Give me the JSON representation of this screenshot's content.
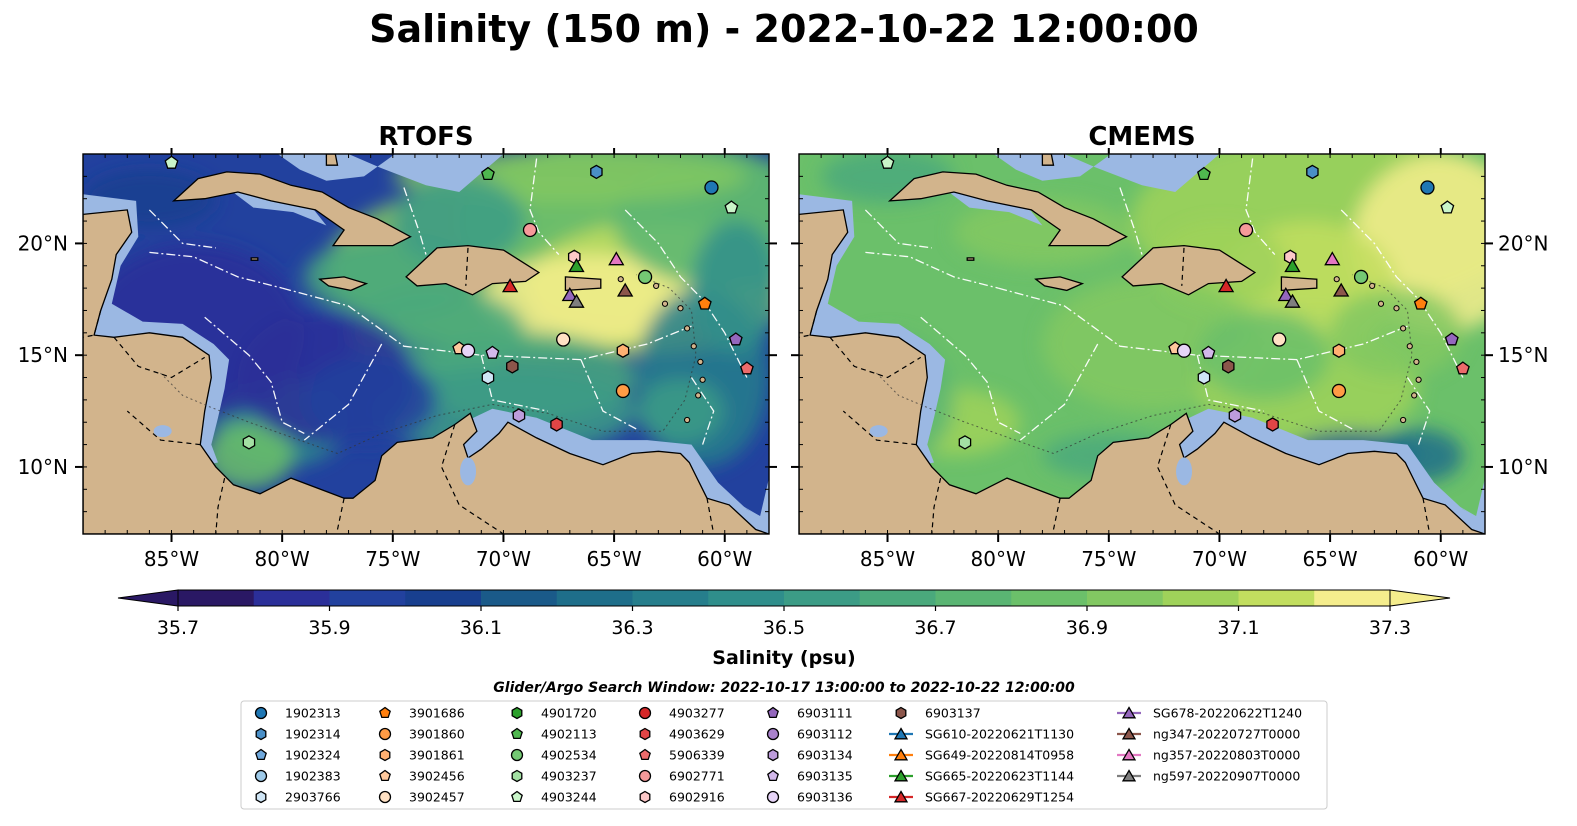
{
  "figure": {
    "title": "Salinity (150 m) - 2022-10-22 12:00:00"
  },
  "colors": {
    "land": "#d2b48c",
    "shelf": "#9bb8e3",
    "colormap": [
      "#2a1864",
      "#2b2f99",
      "#22419e",
      "#183f8f",
      "#1a5a89",
      "#1e6e8a",
      "#267e8c",
      "#2f8e8b",
      "#3c9c86",
      "#4aa97c",
      "#5ab573",
      "#6bc06a",
      "#82c862",
      "#9fd25a",
      "#c2de5f",
      "#f5ed8d"
    ]
  },
  "chart_data": {
    "type": "geospatial-contour",
    "variable": "Salinity",
    "depth": "150 m",
    "time": "2022-10-22 12:00:00",
    "panels": [
      {
        "title": "RTOFS"
      },
      {
        "title": "CMEMS"
      }
    ],
    "lon_range": [
      -89,
      -58
    ],
    "lat_range": [
      7,
      24
    ],
    "x_ticks": [
      {
        "value": -85,
        "label": "85°W"
      },
      {
        "value": -80,
        "label": "80°W"
      },
      {
        "value": -75,
        "label": "75°W"
      },
      {
        "value": -70,
        "label": "70°W"
      },
      {
        "value": -65,
        "label": "65°W"
      },
      {
        "value": -60,
        "label": "60°W"
      }
    ],
    "y_ticks": [
      {
        "value": 20,
        "label": "20°N"
      },
      {
        "value": 15,
        "label": "15°N"
      },
      {
        "value": 10,
        "label": "10°N"
      }
    ],
    "colorbar": {
      "label": "Salinity (psu)",
      "min": 35.7,
      "max": 37.3,
      "extend": "both",
      "ticks": [
        {
          "value": 35.7,
          "label": "35.7"
        },
        {
          "value": 35.9,
          "label": "35.9"
        },
        {
          "value": 36.1,
          "label": "36.1"
        },
        {
          "value": 36.3,
          "label": "36.3"
        },
        {
          "value": 36.5,
          "label": "36.5"
        },
        {
          "value": 36.7,
          "label": "36.7"
        },
        {
          "value": 36.9,
          "label": "36.9"
        },
        {
          "value": 37.1,
          "label": "37.1"
        },
        {
          "value": 37.3,
          "label": "37.3"
        }
      ]
    },
    "legend_title": "Glider/Argo Search Window: 2022-10-17 13:00:00 to 2022-10-22 12:00:00",
    "legend_columns": [
      [
        {
          "label": "1902313",
          "marker": "circle",
          "color": "#1f77b4"
        },
        {
          "label": "1902314",
          "marker": "hexagon",
          "color": "#4a8fc7"
        },
        {
          "label": "1902324",
          "marker": "pentagon",
          "color": "#6fa8dc"
        },
        {
          "label": "1902383",
          "marker": "circle",
          "color": "#9ecae9"
        },
        {
          "label": "2903766",
          "marker": "hexagon",
          "color": "#cfe5f5"
        }
      ],
      [
        {
          "label": "3901686",
          "marker": "pentagon",
          "color": "#ff7f0e"
        },
        {
          "label": "3901860",
          "marker": "circle",
          "color": "#ff9b45"
        },
        {
          "label": "3901861",
          "marker": "hexagon",
          "color": "#ffb072"
        },
        {
          "label": "3902456",
          "marker": "pentagon",
          "color": "#ffc99d"
        },
        {
          "label": "3902457",
          "marker": "circle",
          "color": "#ffe1c4"
        }
      ],
      [
        {
          "label": "4901720",
          "marker": "hexagon",
          "color": "#2ca02c"
        },
        {
          "label": "4902113",
          "marker": "pentagon",
          "color": "#4fb84f"
        },
        {
          "label": "4902534",
          "marker": "circle",
          "color": "#74c974"
        },
        {
          "label": "4903237",
          "marker": "hexagon",
          "color": "#a3e0a3"
        },
        {
          "label": "4903244",
          "marker": "pentagon",
          "color": "#c9f5c9"
        }
      ],
      [
        {
          "label": "4903277",
          "marker": "circle",
          "color": "#d62728"
        },
        {
          "label": "4903629",
          "marker": "hexagon",
          "color": "#e04546"
        },
        {
          "label": "5906339",
          "marker": "pentagon",
          "color": "#ec6b6b"
        },
        {
          "label": "6902771",
          "marker": "circle",
          "color": "#f59a9a"
        },
        {
          "label": "6902916",
          "marker": "hexagon",
          "color": "#fcc8c8"
        }
      ],
      [
        {
          "label": "6903111",
          "marker": "pentagon",
          "color": "#9467bd"
        },
        {
          "label": "6903112",
          "marker": "circle",
          "color": "#a982cc"
        },
        {
          "label": "6903134",
          "marker": "hexagon",
          "color": "#bd9cdb"
        },
        {
          "label": "6903135",
          "marker": "pentagon",
          "color": "#d2b8ea"
        },
        {
          "label": "6903136",
          "marker": "circle",
          "color": "#e6d4f7"
        }
      ],
      [
        {
          "label": "6903137",
          "marker": "hexagon",
          "color": "#8c564b"
        },
        {
          "label": "SG610-20220621T1130",
          "marker": "triangle",
          "color": "#1f77b4",
          "line": true
        },
        {
          "label": "SG649-20220814T0958",
          "marker": "triangle",
          "color": "#ff7f0e",
          "line": true
        },
        {
          "label": "SG665-20220623T1144",
          "marker": "triangle",
          "color": "#2ca02c",
          "line": true
        },
        {
          "label": "SG667-20220629T1254",
          "marker": "triangle",
          "color": "#d62728",
          "line": true
        }
      ],
      [
        {
          "label": "SG678-20220622T1240",
          "marker": "triangle",
          "color": "#9467bd",
          "line": true
        },
        {
          "label": "ng347-20220727T0000",
          "marker": "triangle",
          "color": "#8c564b",
          "line": true
        },
        {
          "label": "ng357-20220803T0000",
          "marker": "triangle",
          "color": "#e377c2",
          "line": true
        },
        {
          "label": "ng597-20220907T0000",
          "marker": "triangle",
          "color": "#7f7f7f",
          "line": true
        }
      ]
    ],
    "markers": [
      {
        "id": "4903244",
        "lon": -85.0,
        "lat": 23.6
      },
      {
        "id": "4902113",
        "lon": -70.7,
        "lat": 23.1
      },
      {
        "id": "1902314",
        "lon": -65.8,
        "lat": 23.2
      },
      {
        "id": "1902313",
        "lon": -60.6,
        "lat": 22.5
      },
      {
        "id": "4903244",
        "lon": -59.7,
        "lat": 21.6
      },
      {
        "id": "6902771",
        "lon": -68.8,
        "lat": 20.6
      },
      {
        "id": "6902916",
        "lon": -66.8,
        "lat": 19.4
      },
      {
        "id": "SG665-20220623T1144",
        "lon": -66.7,
        "lat": 19.0
      },
      {
        "id": "ng357-20220803T0000",
        "lon": -64.9,
        "lat": 19.3
      },
      {
        "id": "4902534",
        "lon": -63.6,
        "lat": 18.5
      },
      {
        "id": "SG667-20220629T1254",
        "lon": -69.7,
        "lat": 18.1
      },
      {
        "id": "ng347-20220727T0000",
        "lon": -64.5,
        "lat": 17.9
      },
      {
        "id": "SG678-20220622T1240",
        "lon": -67.0,
        "lat": 17.7
      },
      {
        "id": "ng597-20220907T0000",
        "lon": -66.7,
        "lat": 17.4
      },
      {
        "id": "3901686",
        "lon": -60.9,
        "lat": 17.3
      },
      {
        "id": "3902457",
        "lon": -67.3,
        "lat": 15.7
      },
      {
        "id": "6903111",
        "lon": -59.5,
        "lat": 15.7
      },
      {
        "id": "3902456",
        "lon": -72.0,
        "lat": 15.3
      },
      {
        "id": "6903136",
        "lon": -71.6,
        "lat": 15.2
      },
      {
        "id": "6903135",
        "lon": -70.5,
        "lat": 15.1
      },
      {
        "id": "3901861",
        "lon": -64.6,
        "lat": 15.2
      },
      {
        "id": "6903137",
        "lon": -69.6,
        "lat": 14.5
      },
      {
        "id": "5906339",
        "lon": -59.0,
        "lat": 14.4
      },
      {
        "id": "2903766",
        "lon": -70.7,
        "lat": 14.0
      },
      {
        "id": "3901860",
        "lon": -64.6,
        "lat": 13.4
      },
      {
        "id": "6903134",
        "lon": -69.3,
        "lat": 12.3
      },
      {
        "id": "4903629",
        "lon": -67.6,
        "lat": 11.9
      },
      {
        "id": "4903237",
        "lon": -81.5,
        "lat": 11.1
      }
    ]
  }
}
